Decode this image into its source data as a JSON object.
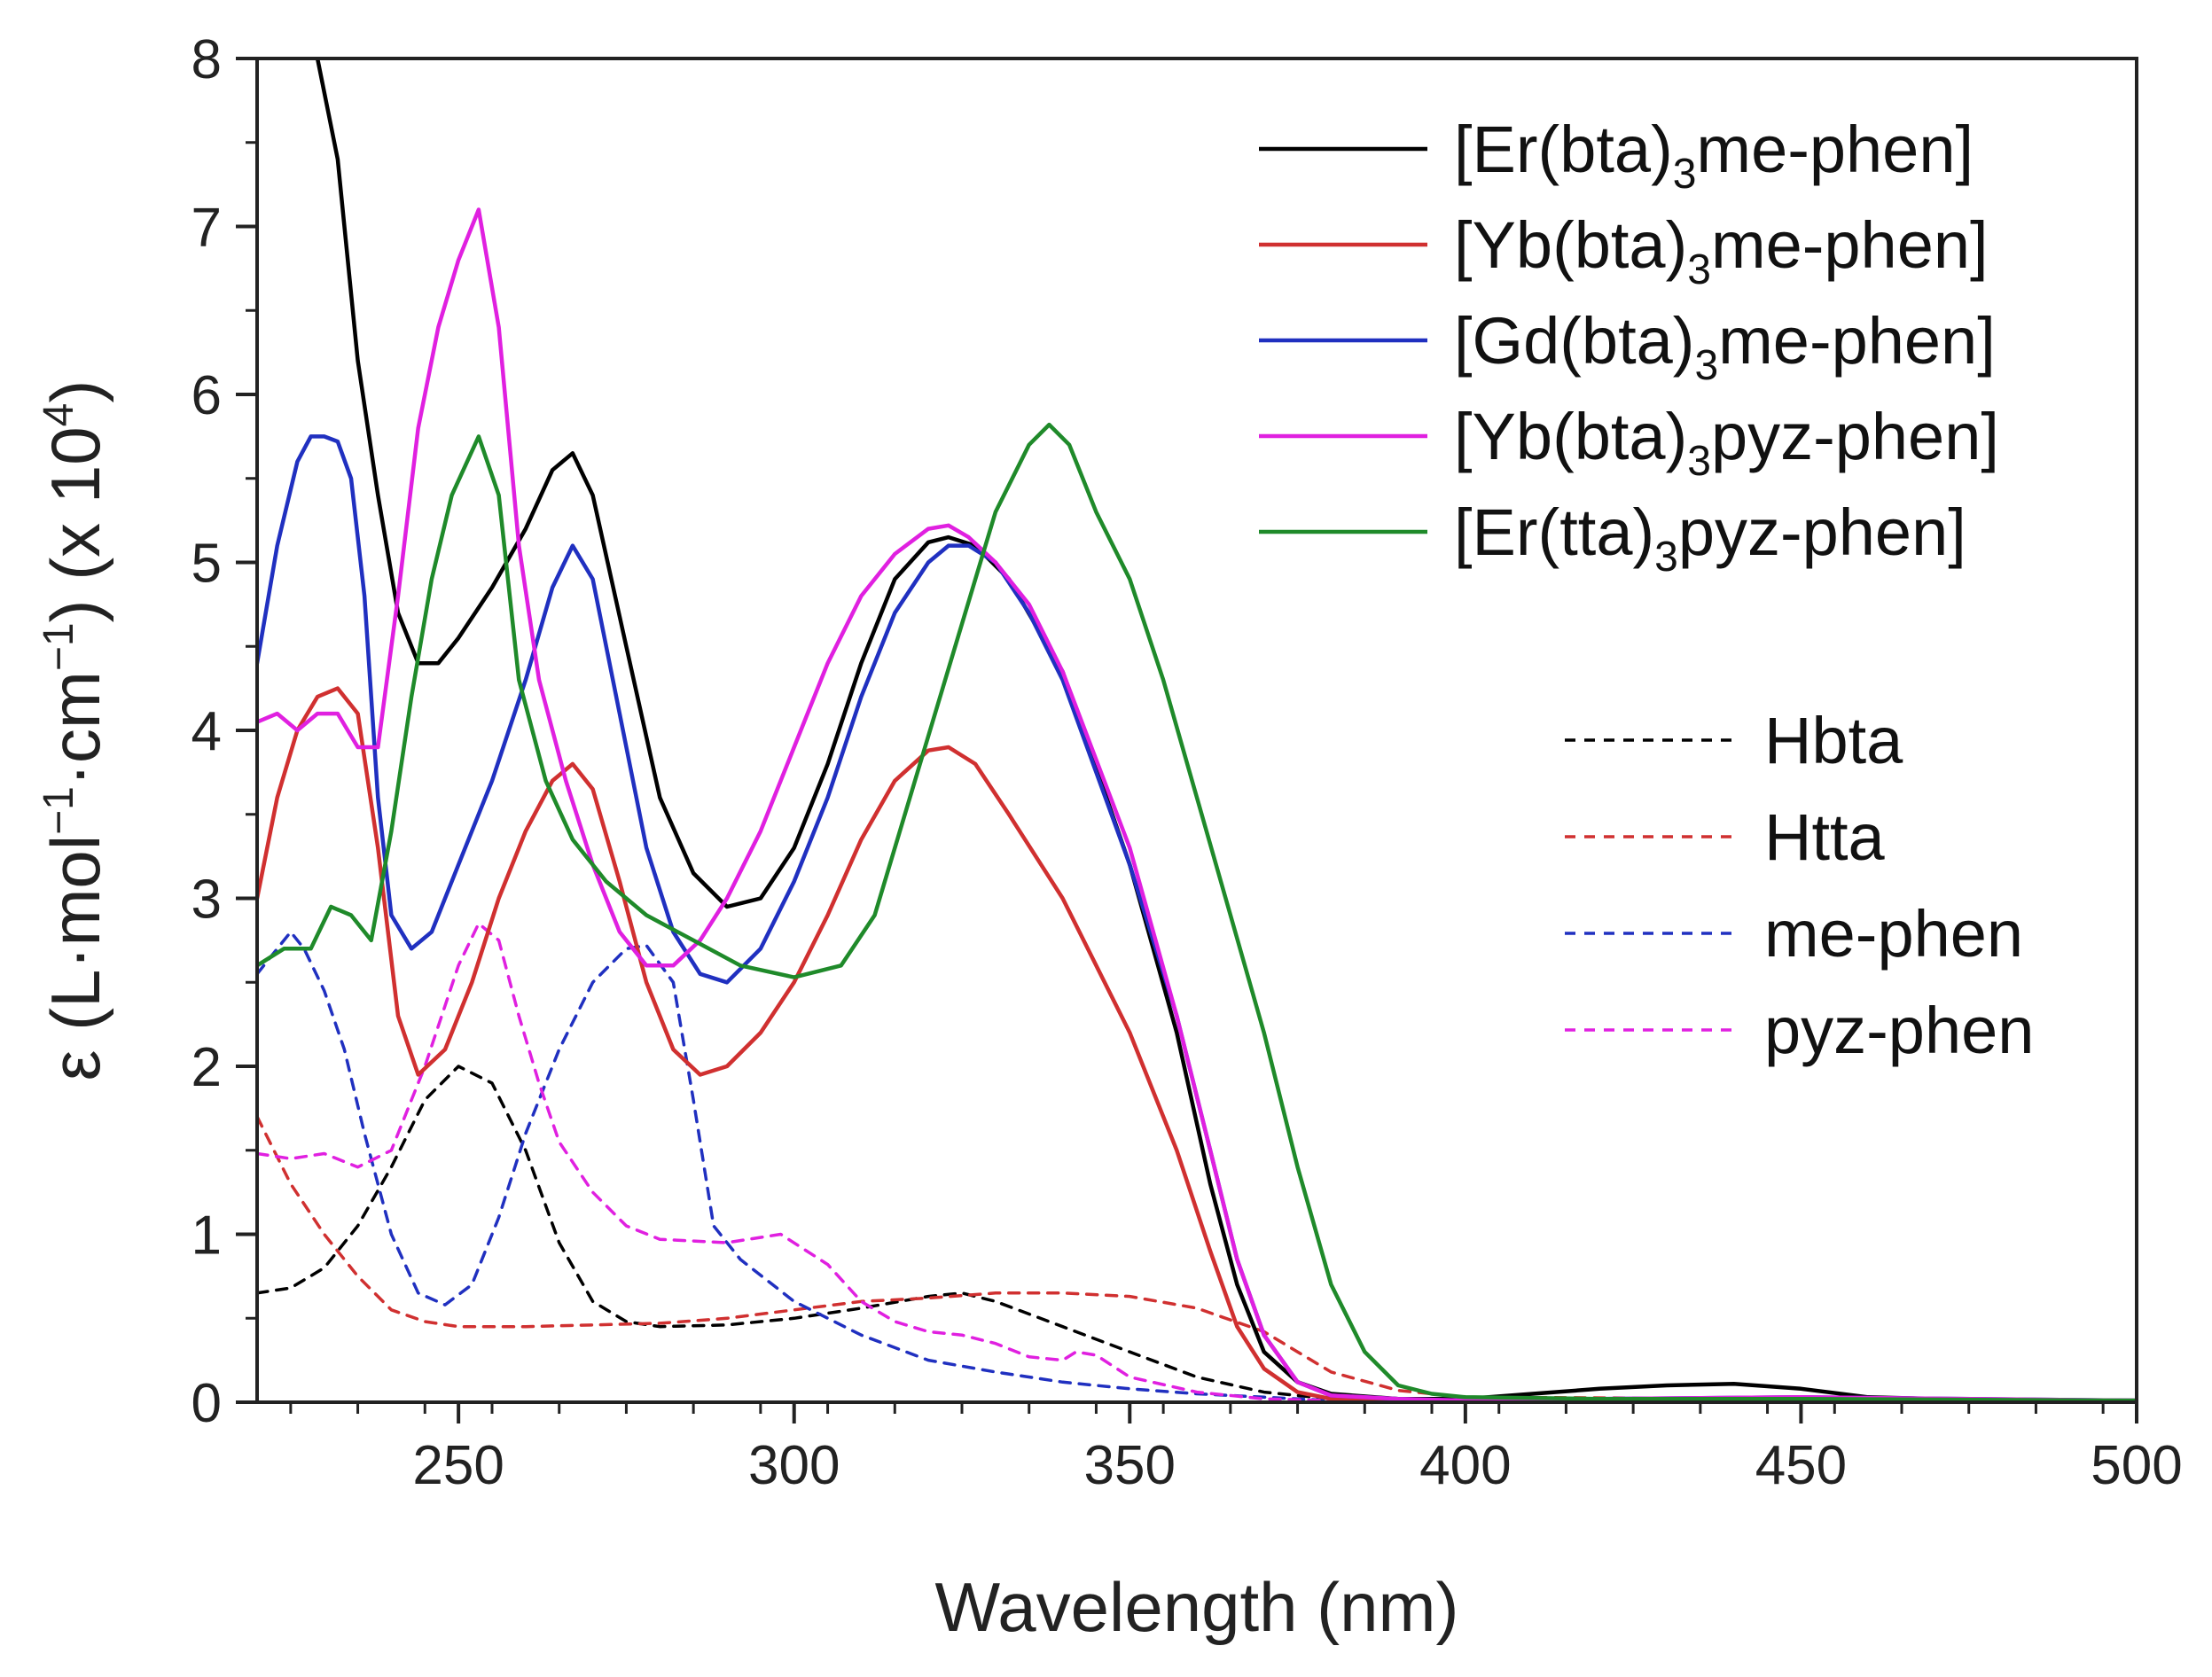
{
  "chart_data": {
    "type": "line",
    "title": "",
    "xlabel": "Wavelength (nm)",
    "ylabel": {
      "prefix": "ε (L·mol",
      "exp1": "−1",
      "mid": "·cm",
      "exp2": "−1",
      "after": ") (x 10",
      "exp3": "4",
      "suffix": ")"
    },
    "xlim": [
      220,
      500
    ],
    "ylim": [
      0,
      8
    ],
    "xticks": [
      250,
      300,
      350,
      400,
      450,
      500
    ],
    "yticks": [
      0,
      1,
      2,
      3,
      4,
      5,
      6,
      7,
      8
    ],
    "legend_position": "top-right",
    "series": [
      {
        "name": "[Er(bta)3me-phen]",
        "legend_parts": [
          "[Er(bta)",
          "3",
          "me-phen]"
        ],
        "color": "#000000",
        "dash": "solid",
        "x": [
          229,
          232,
          235,
          238,
          241,
          244,
          247,
          250,
          255,
          260,
          264,
          267,
          270,
          275,
          280,
          285,
          290,
          295,
          300,
          305,
          310,
          315,
          320,
          323,
          327,
          332,
          340,
          350,
          357,
          362,
          366,
          370,
          375,
          380,
          390,
          400,
          410,
          420,
          430,
          440,
          450,
          460,
          470,
          480,
          500
        ],
        "y": [
          8.0,
          7.4,
          6.2,
          5.4,
          4.7,
          4.4,
          4.4,
          4.55,
          4.85,
          5.2,
          5.55,
          5.65,
          5.4,
          4.5,
          3.6,
          3.15,
          2.95,
          3.0,
          3.3,
          3.8,
          4.4,
          4.9,
          5.12,
          5.15,
          5.1,
          4.9,
          4.35,
          3.2,
          2.2,
          1.3,
          0.7,
          0.3,
          0.12,
          0.05,
          0.02,
          0.02,
          0.05,
          0.08,
          0.1,
          0.11,
          0.08,
          0.03,
          0.02,
          0.01,
          0.01
        ]
      },
      {
        "name": "[Yb(bta)3me-phen]",
        "legend_parts": [
          "[Yb(bta)",
          "3",
          "me-phen]"
        ],
        "color": "#d03030",
        "dash": "solid",
        "x": [
          220,
          223,
          226,
          229,
          232,
          235,
          238,
          241,
          244,
          248,
          252,
          256,
          260,
          264,
          267,
          270,
          274,
          278,
          282,
          286,
          290,
          295,
          300,
          305,
          310,
          315,
          320,
          323,
          327,
          332,
          340,
          350,
          357,
          362,
          366,
          370,
          375,
          380,
          390,
          400,
          420,
          450,
          500
        ],
        "y": [
          3.0,
          3.6,
          4.0,
          4.2,
          4.25,
          4.1,
          3.3,
          2.3,
          1.95,
          2.1,
          2.5,
          3.0,
          3.4,
          3.7,
          3.8,
          3.65,
          3.1,
          2.5,
          2.1,
          1.95,
          2.0,
          2.2,
          2.5,
          2.9,
          3.35,
          3.7,
          3.88,
          3.9,
          3.8,
          3.5,
          3.0,
          2.2,
          1.5,
          0.9,
          0.45,
          0.2,
          0.06,
          0.02,
          0.01,
          0.01,
          0.02,
          0.02,
          0.01
        ]
      },
      {
        "name": "[Gd(bta)3me-phen]",
        "legend_parts": [
          "[Gd(bta)",
          "3",
          "me-phen]"
        ],
        "color": "#2030c0",
        "dash": "solid",
        "x": [
          220,
          223,
          226,
          228,
          230,
          232,
          234,
          236,
          238,
          240,
          243,
          246,
          250,
          255,
          260,
          264,
          267,
          270,
          274,
          278,
          282,
          286,
          290,
          295,
          300,
          305,
          310,
          315,
          320,
          323,
          326,
          330,
          335,
          340,
          350,
          357,
          362,
          366,
          370,
          375,
          380,
          390,
          400,
          420,
          450,
          500
        ],
        "y": [
          4.4,
          5.1,
          5.6,
          5.75,
          5.75,
          5.72,
          5.5,
          4.8,
          3.6,
          2.9,
          2.7,
          2.8,
          3.2,
          3.7,
          4.3,
          4.85,
          5.1,
          4.9,
          4.1,
          3.3,
          2.8,
          2.55,
          2.5,
          2.7,
          3.1,
          3.6,
          4.2,
          4.7,
          5.0,
          5.1,
          5.1,
          5.0,
          4.7,
          4.3,
          3.2,
          2.3,
          1.5,
          0.85,
          0.4,
          0.12,
          0.04,
          0.02,
          0.01,
          0.02,
          0.03,
          0.01
        ]
      },
      {
        "name": "[Yb(bta)3pyz-phen]",
        "legend_parts": [
          "[Yb(bta)",
          "3",
          "pyz-phen]"
        ],
        "color": "#e020e0",
        "dash": "solid",
        "x": [
          220,
          223,
          226,
          229,
          232,
          235,
          238,
          241,
          244,
          247,
          250,
          253,
          256,
          259,
          262,
          266,
          270,
          274,
          278,
          282,
          286,
          290,
          295,
          300,
          305,
          310,
          315,
          320,
          323,
          326,
          330,
          335,
          340,
          350,
          357,
          362,
          366,
          370,
          375,
          380,
          390,
          400,
          420,
          450,
          500
        ],
        "y": [
          4.05,
          4.1,
          4.0,
          4.1,
          4.1,
          3.9,
          3.9,
          4.8,
          5.8,
          6.4,
          6.8,
          7.1,
          6.4,
          5.1,
          4.3,
          3.7,
          3.2,
          2.8,
          2.6,
          2.6,
          2.75,
          3.0,
          3.4,
          3.9,
          4.4,
          4.8,
          5.05,
          5.2,
          5.22,
          5.15,
          5.0,
          4.75,
          4.35,
          3.3,
          2.3,
          1.5,
          0.85,
          0.4,
          0.12,
          0.04,
          0.02,
          0.01,
          0.02,
          0.03,
          0.01
        ]
      },
      {
        "name": "[Er(tta)3pyz-phen]",
        "legend_parts": [
          "[Er(tta)",
          "3",
          "pyz-phen]"
        ],
        "color": "#1f8a2a",
        "dash": "solid",
        "x": [
          220,
          224,
          228,
          231,
          234,
          237,
          240,
          243,
          246,
          249,
          253,
          256,
          259,
          263,
          267,
          272,
          278,
          285,
          292,
          300,
          307,
          312,
          318,
          324,
          330,
          335,
          338,
          341,
          345,
          350,
          355,
          360,
          365,
          370,
          375,
          380,
          385,
          390,
          395,
          400,
          420,
          450,
          500
        ],
        "y": [
          2.6,
          2.7,
          2.7,
          2.95,
          2.9,
          2.75,
          3.4,
          4.2,
          4.9,
          5.4,
          5.75,
          5.4,
          4.3,
          3.7,
          3.35,
          3.1,
          2.9,
          2.75,
          2.6,
          2.53,
          2.6,
          2.9,
          3.7,
          4.5,
          5.3,
          5.7,
          5.82,
          5.7,
          5.3,
          4.9,
          4.3,
          3.6,
          2.9,
          2.2,
          1.4,
          0.7,
          0.3,
          0.1,
          0.05,
          0.03,
          0.02,
          0.02,
          0.01
        ]
      },
      {
        "name": "Hbta",
        "legend_parts": [
          "Hbta"
        ],
        "color": "#000000",
        "dash": "dashed",
        "x": [
          220,
          225,
          230,
          235,
          240,
          245,
          250,
          255,
          260,
          265,
          270,
          275,
          280,
          290,
          300,
          310,
          320,
          325,
          330,
          340,
          350,
          360,
          370,
          380,
          400,
          450,
          500
        ],
        "y": [
          0.65,
          0.68,
          0.8,
          1.05,
          1.4,
          1.8,
          2.0,
          1.9,
          1.5,
          0.95,
          0.6,
          0.48,
          0.45,
          0.46,
          0.5,
          0.56,
          0.63,
          0.65,
          0.6,
          0.45,
          0.3,
          0.15,
          0.06,
          0.02,
          0.01,
          0.01,
          0.01
        ]
      },
      {
        "name": "Htta",
        "legend_parts": [
          "Htta"
        ],
        "color": "#d03030",
        "dash": "dashed",
        "x": [
          220,
          225,
          230,
          235,
          240,
          245,
          250,
          260,
          270,
          280,
          290,
          300,
          310,
          320,
          330,
          340,
          350,
          360,
          370,
          375,
          380,
          390,
          400,
          450,
          500
        ],
        "y": [
          1.7,
          1.3,
          1.0,
          0.75,
          0.55,
          0.48,
          0.45,
          0.45,
          0.46,
          0.47,
          0.5,
          0.55,
          0.6,
          0.62,
          0.65,
          0.65,
          0.63,
          0.56,
          0.42,
          0.3,
          0.18,
          0.07,
          0.03,
          0.02,
          0.01
        ]
      },
      {
        "name": "me-phen",
        "legend_parts": [
          "me-phen"
        ],
        "color": "#2030c0",
        "dash": "dashed",
        "x": [
          220,
          223,
          225,
          227,
          230,
          233,
          236,
          240,
          244,
          248,
          252,
          256,
          260,
          265,
          270,
          275,
          278,
          282,
          285,
          288,
          292,
          300,
          310,
          320,
          330,
          340,
          350,
          360,
          370,
          380,
          400,
          500
        ],
        "y": [
          2.55,
          2.7,
          2.8,
          2.7,
          2.45,
          2.1,
          1.6,
          1.0,
          0.65,
          0.58,
          0.7,
          1.1,
          1.6,
          2.1,
          2.5,
          2.7,
          2.72,
          2.5,
          1.8,
          1.05,
          0.85,
          0.6,
          0.4,
          0.25,
          0.18,
          0.12,
          0.08,
          0.05,
          0.03,
          0.01,
          0.0,
          0.0
        ]
      },
      {
        "name": "pyz-phen",
        "legend_parts": [
          "pyz-phen"
        ],
        "color": "#e020e0",
        "dash": "dashed",
        "x": [
          220,
          225,
          230,
          235,
          240,
          245,
          250,
          253,
          256,
          259,
          262,
          265,
          270,
          275,
          280,
          290,
          298,
          305,
          310,
          315,
          320,
          325,
          330,
          335,
          340,
          342,
          345,
          350,
          360,
          370,
          380,
          400,
          500
        ],
        "y": [
          1.48,
          1.45,
          1.48,
          1.4,
          1.5,
          2.0,
          2.6,
          2.85,
          2.75,
          2.3,
          1.9,
          1.55,
          1.25,
          1.05,
          0.97,
          0.95,
          1.0,
          0.82,
          0.6,
          0.48,
          0.42,
          0.4,
          0.35,
          0.27,
          0.25,
          0.3,
          0.28,
          0.15,
          0.06,
          0.02,
          0.01,
          0.0,
          0.0
        ]
      }
    ]
  }
}
